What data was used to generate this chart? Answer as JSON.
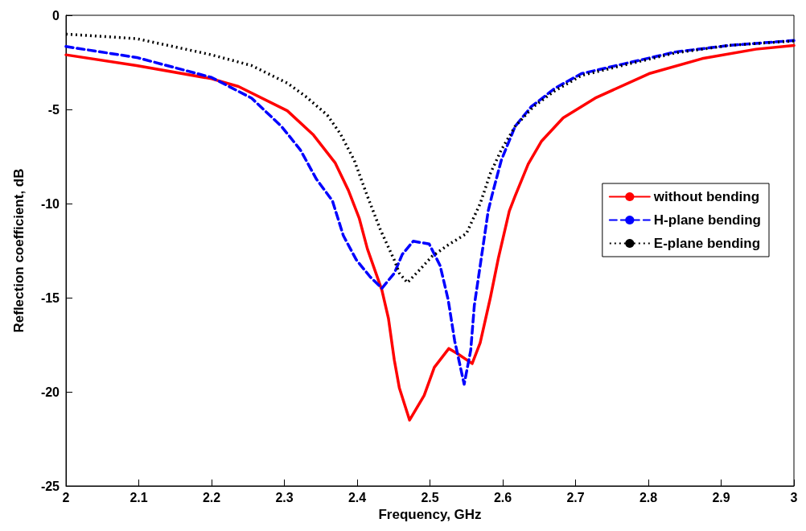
{
  "chart_data": {
    "type": "line",
    "xlabel": "Frequency, GHz",
    "ylabel": "Reflection coefficient, dB",
    "xlim": [
      2,
      3
    ],
    "xticks": [
      2,
      2.1,
      2.2,
      2.3,
      2.4,
      2.5,
      2.6,
      2.7,
      2.8,
      2.9,
      3
    ],
    "ylim": [
      -25,
      0
    ],
    "yticks": [
      -25,
      -20,
      -15,
      -10,
      -5,
      0
    ],
    "grid": false,
    "legend": "right",
    "marker": "none",
    "series": [
      {
        "name": "without bending",
        "color": "#ff0000",
        "line_style": "solid",
        "x": [
          2,
          2.097,
          2.2,
          2.237,
          2.304,
          2.34,
          2.37,
          2.388,
          2.403,
          2.414,
          2.434,
          2.443,
          2.451,
          2.458,
          2.472,
          2.492,
          2.506,
          2.526,
          2.539,
          2.558,
          2.569,
          2.583,
          2.594,
          2.609,
          2.617,
          2.635,
          2.653,
          2.683,
          2.727,
          2.801,
          2.874,
          2.948,
          3
        ],
        "values": [
          -2.1,
          -2.67,
          -3.37,
          -3.78,
          -5.07,
          -6.36,
          -7.85,
          -9.3,
          -10.8,
          -12.4,
          -14.6,
          -16.1,
          -18.3,
          -19.8,
          -21.5,
          -20.2,
          -18.7,
          -17.7,
          -18.0,
          -18.5,
          -17.4,
          -15.0,
          -12.9,
          -10.4,
          -9.6,
          -7.9,
          -6.7,
          -5.45,
          -4.4,
          -3.1,
          -2.3,
          -1.8,
          -1.6
        ]
      },
      {
        "name": "H-plane bending",
        "color": "#0000ff",
        "line_style": "dashed",
        "x": [
          2,
          2.097,
          2.2,
          2.255,
          2.296,
          2.322,
          2.344,
          2.366,
          2.381,
          2.399,
          2.418,
          2.434,
          2.451,
          2.462,
          2.477,
          2.499,
          2.514,
          2.525,
          2.534,
          2.547,
          2.556,
          2.561,
          2.569,
          2.58,
          2.585,
          2.598,
          2.617,
          2.639,
          2.672,
          2.708,
          2.764,
          2.837,
          2.911,
          3
        ],
        "values": [
          -1.66,
          -2.24,
          -3.3,
          -4.4,
          -5.9,
          -7.15,
          -8.7,
          -9.85,
          -11.7,
          -13.0,
          -13.9,
          -14.5,
          -13.7,
          -12.7,
          -12.0,
          -12.15,
          -13.3,
          -15.1,
          -17.3,
          -19.6,
          -17.8,
          -15.4,
          -13.3,
          -10.4,
          -9.6,
          -7.7,
          -5.9,
          -4.86,
          -3.87,
          -3.1,
          -2.6,
          -1.95,
          -1.6,
          -1.34
        ]
      },
      {
        "name": "E-plane bending",
        "color": "#000000",
        "line_style": "dotted",
        "x": [
          2,
          2.097,
          2.2,
          2.255,
          2.304,
          2.329,
          2.359,
          2.377,
          2.396,
          2.414,
          2.432,
          2.451,
          2.458,
          2.469,
          2.484,
          2.503,
          2.525,
          2.55,
          2.569,
          2.583,
          2.598,
          2.617,
          2.642,
          2.672,
          2.708,
          2.764,
          2.837,
          2.911,
          3
        ],
        "values": [
          -1.0,
          -1.24,
          -2.1,
          -2.67,
          -3.6,
          -4.3,
          -5.3,
          -6.3,
          -7.7,
          -9.6,
          -11.4,
          -13.0,
          -13.7,
          -14.2,
          -13.6,
          -12.8,
          -12.2,
          -11.6,
          -10.0,
          -8.4,
          -7.15,
          -5.9,
          -4.86,
          -4.0,
          -3.2,
          -2.67,
          -2.0,
          -1.6,
          -1.36
        ]
      }
    ]
  }
}
